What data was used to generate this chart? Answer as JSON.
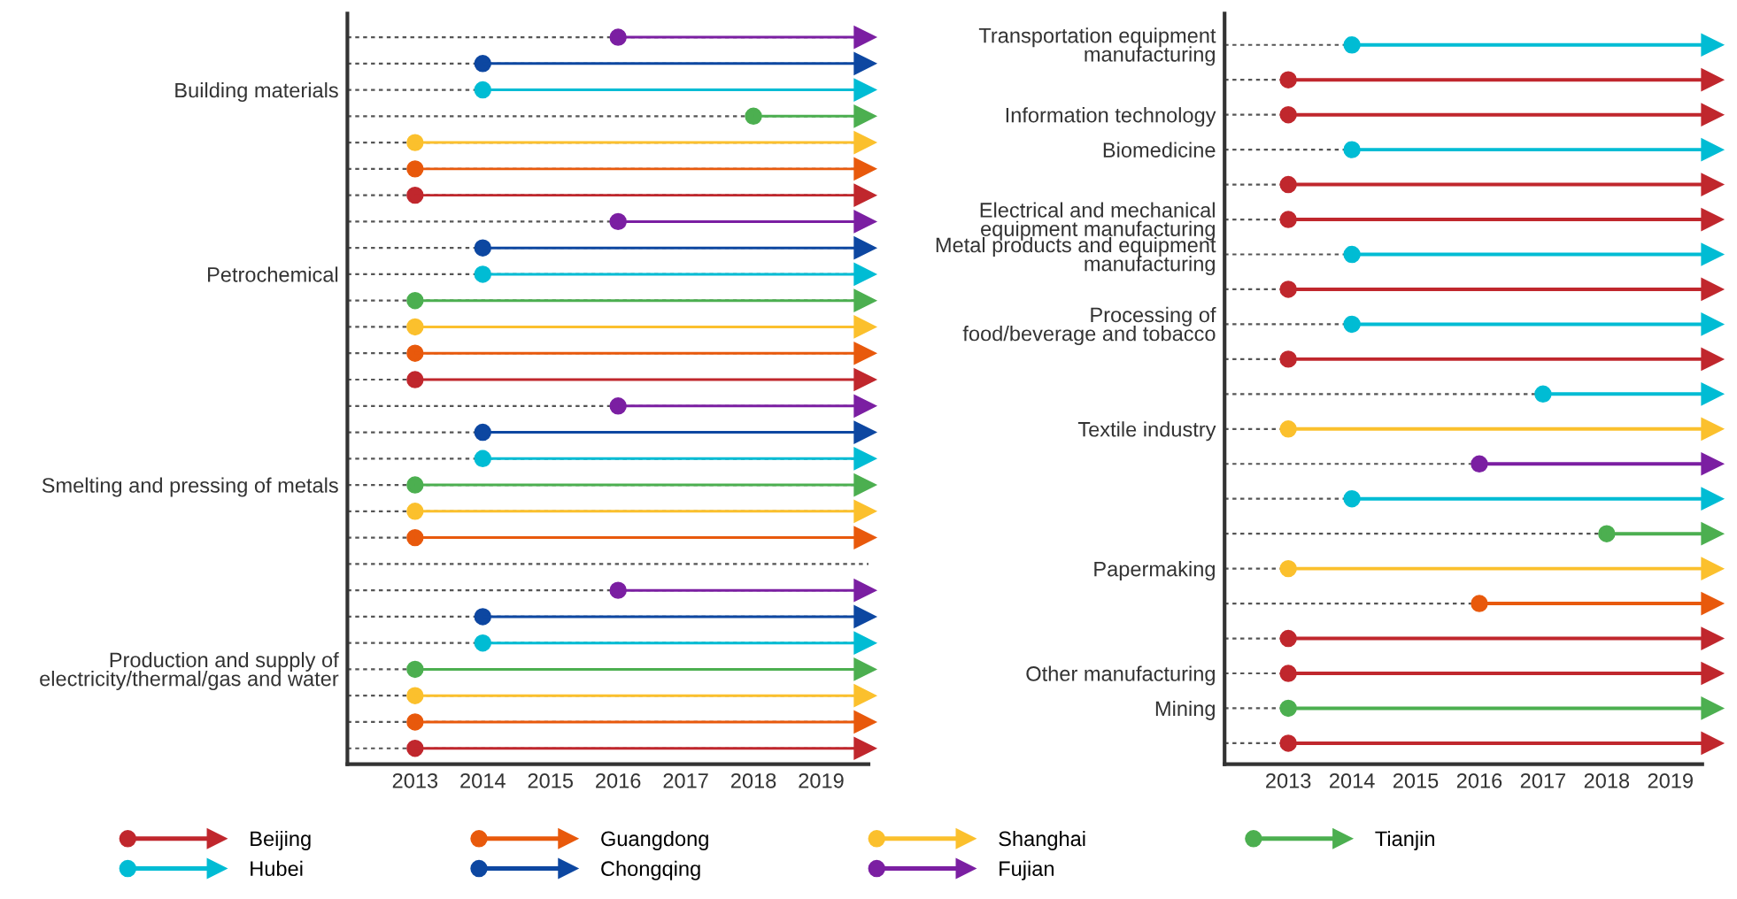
{
  "chart_data": [
    {
      "type": "bar",
      "orientation": "horizontal",
      "stacked": true,
      "grid": "y",
      "legend": "bottom",
      "marker": "circle",
      "categories": [
        null,
        null,
        "Building materials",
        null,
        null,
        null,
        null,
        null,
        null,
        "Petrochemical",
        null,
        null,
        null,
        null,
        null,
        null,
        null,
        "Smelting and pressing of metals",
        null,
        null,
        null,
        null,
        null,
        null,
        "Production and supply of\nelectricity/thermal/gas and water",
        null,
        null,
        null
      ],
      "xlim": [
        2012,
        2019.7
      ],
      "xticks": [
        2013,
        2014,
        2015,
        2016,
        2017,
        2018,
        2019
      ],
      "series": [
        {
          "name": "Beijing",
          "color": "#c0272d",
          "base": [
            null,
            null,
            null,
            null,
            null,
            null,
            2013,
            null,
            null,
            null,
            null,
            null,
            null,
            2013,
            null,
            null,
            null,
            null,
            null,
            null,
            null,
            null,
            null,
            null,
            null,
            null,
            null,
            2013
          ],
          "values": [
            null,
            null,
            null,
            null,
            null,
            null,
            6.5,
            null,
            null,
            null,
            null,
            null,
            null,
            6.5,
            null,
            null,
            null,
            null,
            null,
            null,
            null,
            null,
            null,
            null,
            null,
            null,
            null,
            6.5
          ]
        },
        {
          "name": "Guangdong",
          "color": "#e8590c",
          "base": [
            null,
            null,
            null,
            null,
            null,
            2013,
            null,
            null,
            null,
            null,
            null,
            null,
            2013,
            null,
            null,
            null,
            null,
            null,
            null,
            2013,
            null,
            null,
            null,
            null,
            null,
            null,
            2013,
            null
          ],
          "values": [
            null,
            null,
            null,
            null,
            null,
            6.5,
            null,
            null,
            null,
            null,
            null,
            null,
            6.5,
            null,
            null,
            null,
            null,
            null,
            null,
            6.5,
            null,
            null,
            null,
            null,
            null,
            null,
            6.5,
            null
          ]
        },
        {
          "name": "Shanghai",
          "color": "#fbc02d",
          "base": [
            null,
            null,
            null,
            null,
            2013,
            null,
            null,
            null,
            null,
            null,
            null,
            2013,
            null,
            null,
            null,
            null,
            null,
            null,
            2013,
            null,
            null,
            null,
            null,
            null,
            null,
            2013,
            null,
            null
          ],
          "values": [
            null,
            null,
            null,
            null,
            6.5,
            null,
            null,
            null,
            null,
            null,
            null,
            6.5,
            null,
            null,
            null,
            null,
            null,
            null,
            6.5,
            null,
            null,
            null,
            null,
            null,
            null,
            6.5,
            null,
            null
          ]
        },
        {
          "name": "Tianjin",
          "color": "#4caf50",
          "base": [
            null,
            null,
            null,
            2018,
            null,
            null,
            null,
            null,
            null,
            null,
            2013,
            null,
            null,
            null,
            null,
            null,
            null,
            2013,
            null,
            null,
            null,
            null,
            null,
            null,
            2013,
            null,
            null,
            null
          ],
          "values": [
            null,
            null,
            null,
            1.5,
            null,
            null,
            null,
            null,
            null,
            null,
            6.5,
            null,
            null,
            null,
            null,
            null,
            null,
            6.5,
            null,
            null,
            null,
            null,
            null,
            null,
            6.5,
            null,
            null,
            null
          ]
        },
        {
          "name": "Hubei",
          "color": "#00bcd4",
          "base": [
            null,
            null,
            2014,
            null,
            null,
            null,
            null,
            null,
            null,
            2014,
            null,
            null,
            null,
            null,
            null,
            null,
            2014,
            null,
            null,
            null,
            null,
            null,
            null,
            2014,
            null,
            null,
            null,
            null
          ],
          "values": [
            null,
            null,
            5.5,
            null,
            null,
            null,
            null,
            null,
            null,
            5.5,
            null,
            null,
            null,
            null,
            null,
            null,
            5.5,
            null,
            null,
            null,
            null,
            null,
            null,
            5.5,
            null,
            null,
            null,
            null
          ]
        },
        {
          "name": "Chongqing",
          "color": "#0d47a1",
          "base": [
            null,
            2014,
            null,
            null,
            null,
            null,
            null,
            null,
            2014,
            null,
            null,
            null,
            null,
            null,
            null,
            2014,
            null,
            null,
            null,
            null,
            null,
            null,
            2014,
            null,
            null,
            null,
            null,
            null
          ],
          "values": [
            null,
            5.5,
            null,
            null,
            null,
            null,
            null,
            null,
            5.5,
            null,
            null,
            null,
            null,
            null,
            null,
            5.5,
            null,
            null,
            null,
            null,
            null,
            null,
            5.5,
            null,
            null,
            null,
            null,
            null
          ]
        },
        {
          "name": "Fujian",
          "color": "#7b1fa2",
          "base": [
            2016,
            null,
            null,
            null,
            null,
            null,
            null,
            2016,
            null,
            null,
            null,
            null,
            null,
            null,
            2016,
            null,
            null,
            null,
            null,
            null,
            null,
            2016,
            null,
            null,
            null,
            null,
            null,
            null
          ],
          "values": [
            3.5,
            null,
            null,
            null,
            null,
            null,
            null,
            3.5,
            null,
            null,
            null,
            null,
            null,
            null,
            3.5,
            null,
            null,
            null,
            null,
            null,
            null,
            3.5,
            null,
            null,
            null,
            null,
            null,
            null
          ]
        }
      ]
    },
    {
      "type": "bar",
      "orientation": "horizontal",
      "stacked": true,
      "grid": "y",
      "marker": "circle",
      "categories": [
        "Transportation equipment\nmanufacturing",
        null,
        "Information technology",
        "Biomedicine",
        null,
        "Electrical and mechanical\nequipment manufacturing",
        "Metal products and equipment\nmanufacturing",
        null,
        "Processing of\nfood/beverage and tobacco",
        null,
        null,
        "Textile industry",
        null,
        null,
        null,
        "Papermaking",
        null,
        null,
        "Other manufacturing",
        "Mining",
        null
      ],
      "xlim": [
        2012,
        2019.5
      ],
      "xticks": [
        2013,
        2014,
        2015,
        2016,
        2017,
        2018,
        2019
      ],
      "series": [
        {
          "name": "Beijing",
          "color": "#c0272d",
          "base": [
            null,
            2013,
            2013,
            null,
            2013,
            2013,
            null,
            2013,
            null,
            2013,
            null,
            null,
            null,
            null,
            null,
            null,
            null,
            2013,
            2013,
            null,
            2013
          ],
          "values": [
            null,
            6.5,
            6.5,
            null,
            6.5,
            6.5,
            null,
            6.5,
            null,
            6.5,
            null,
            null,
            null,
            null,
            null,
            null,
            null,
            6.5,
            6.5,
            null,
            6.5
          ]
        },
        {
          "name": "Guangdong",
          "color": "#e8590c",
          "base": [
            null,
            null,
            null,
            null,
            null,
            null,
            null,
            null,
            null,
            null,
            null,
            null,
            null,
            null,
            null,
            null,
            2016,
            null,
            null,
            null,
            null
          ],
          "values": [
            null,
            null,
            null,
            null,
            null,
            null,
            null,
            null,
            null,
            null,
            null,
            null,
            null,
            null,
            null,
            null,
            3.5,
            null,
            null,
            null,
            null
          ]
        },
        {
          "name": "Shanghai",
          "color": "#fbc02d",
          "base": [
            null,
            null,
            null,
            null,
            null,
            null,
            null,
            null,
            null,
            null,
            null,
            2013,
            null,
            null,
            null,
            2013,
            null,
            null,
            null,
            null,
            null
          ],
          "values": [
            null,
            null,
            null,
            null,
            null,
            null,
            null,
            null,
            null,
            null,
            null,
            6.5,
            null,
            null,
            null,
            6.5,
            null,
            null,
            null,
            null,
            null
          ]
        },
        {
          "name": "Tianjin",
          "color": "#4caf50",
          "base": [
            null,
            null,
            null,
            null,
            null,
            null,
            null,
            null,
            null,
            null,
            null,
            null,
            null,
            null,
            2018,
            null,
            null,
            null,
            null,
            2013,
            null
          ],
          "values": [
            null,
            null,
            null,
            null,
            null,
            null,
            null,
            null,
            null,
            null,
            null,
            null,
            null,
            null,
            1.5,
            null,
            null,
            null,
            null,
            6.5,
            null
          ]
        },
        {
          "name": "Hubei",
          "color": "#00bcd4",
          "base": [
            2014,
            null,
            null,
            2014,
            null,
            null,
            2014,
            null,
            2014,
            null,
            2017,
            null,
            null,
            2014,
            null,
            null,
            null,
            null,
            null,
            null,
            null
          ],
          "values": [
            5.5,
            null,
            null,
            5.5,
            null,
            null,
            5.5,
            null,
            5.5,
            null,
            2.5,
            null,
            null,
            5.5,
            null,
            null,
            null,
            null,
            null,
            null,
            null
          ]
        },
        {
          "name": "Fujian",
          "color": "#7b1fa2",
          "base": [
            null,
            null,
            null,
            null,
            null,
            null,
            null,
            null,
            null,
            null,
            null,
            null,
            2016,
            null,
            null,
            null,
            null,
            null,
            null,
            null,
            null
          ],
          "values": [
            null,
            null,
            null,
            null,
            null,
            null,
            null,
            null,
            null,
            null,
            null,
            null,
            3.5,
            null,
            null,
            null,
            null,
            null,
            null,
            null,
            null
          ]
        }
      ]
    }
  ]
}
